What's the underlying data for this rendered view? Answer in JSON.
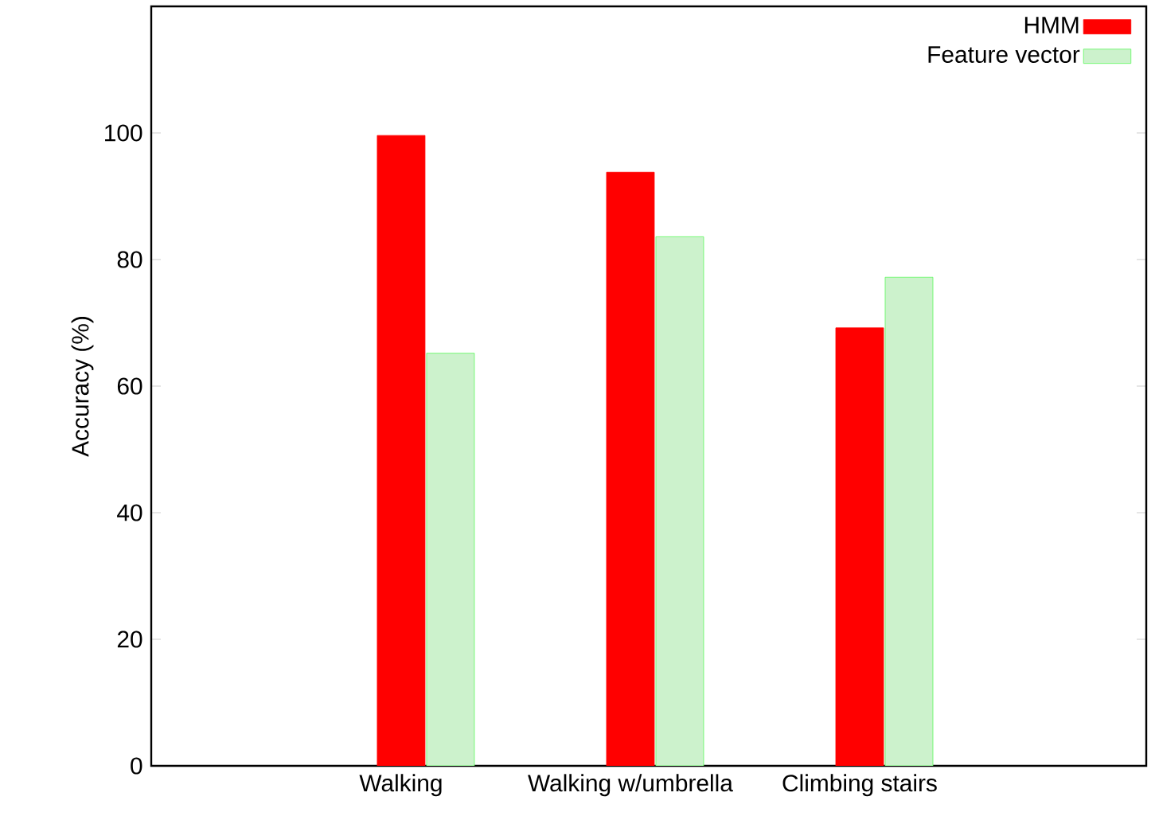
{
  "chart_data": {
    "type": "bar",
    "ylabel": "Accuracy (%)",
    "categories": [
      "Walking",
      "Walking w/umbrella",
      "Climbing stairs"
    ],
    "series": [
      {
        "name": "HMM",
        "color": "#ff0000",
        "values": [
          99.6,
          93.8,
          69.2
        ]
      },
      {
        "name": "Feature vector",
        "color": "#ccf2cc",
        "values": [
          65.2,
          83.6,
          77.2
        ]
      }
    ],
    "ylim": [
      0,
      120
    ],
    "yticks": [
      0,
      20,
      40,
      60,
      80,
      100
    ],
    "grid": false,
    "legend": "top right"
  }
}
